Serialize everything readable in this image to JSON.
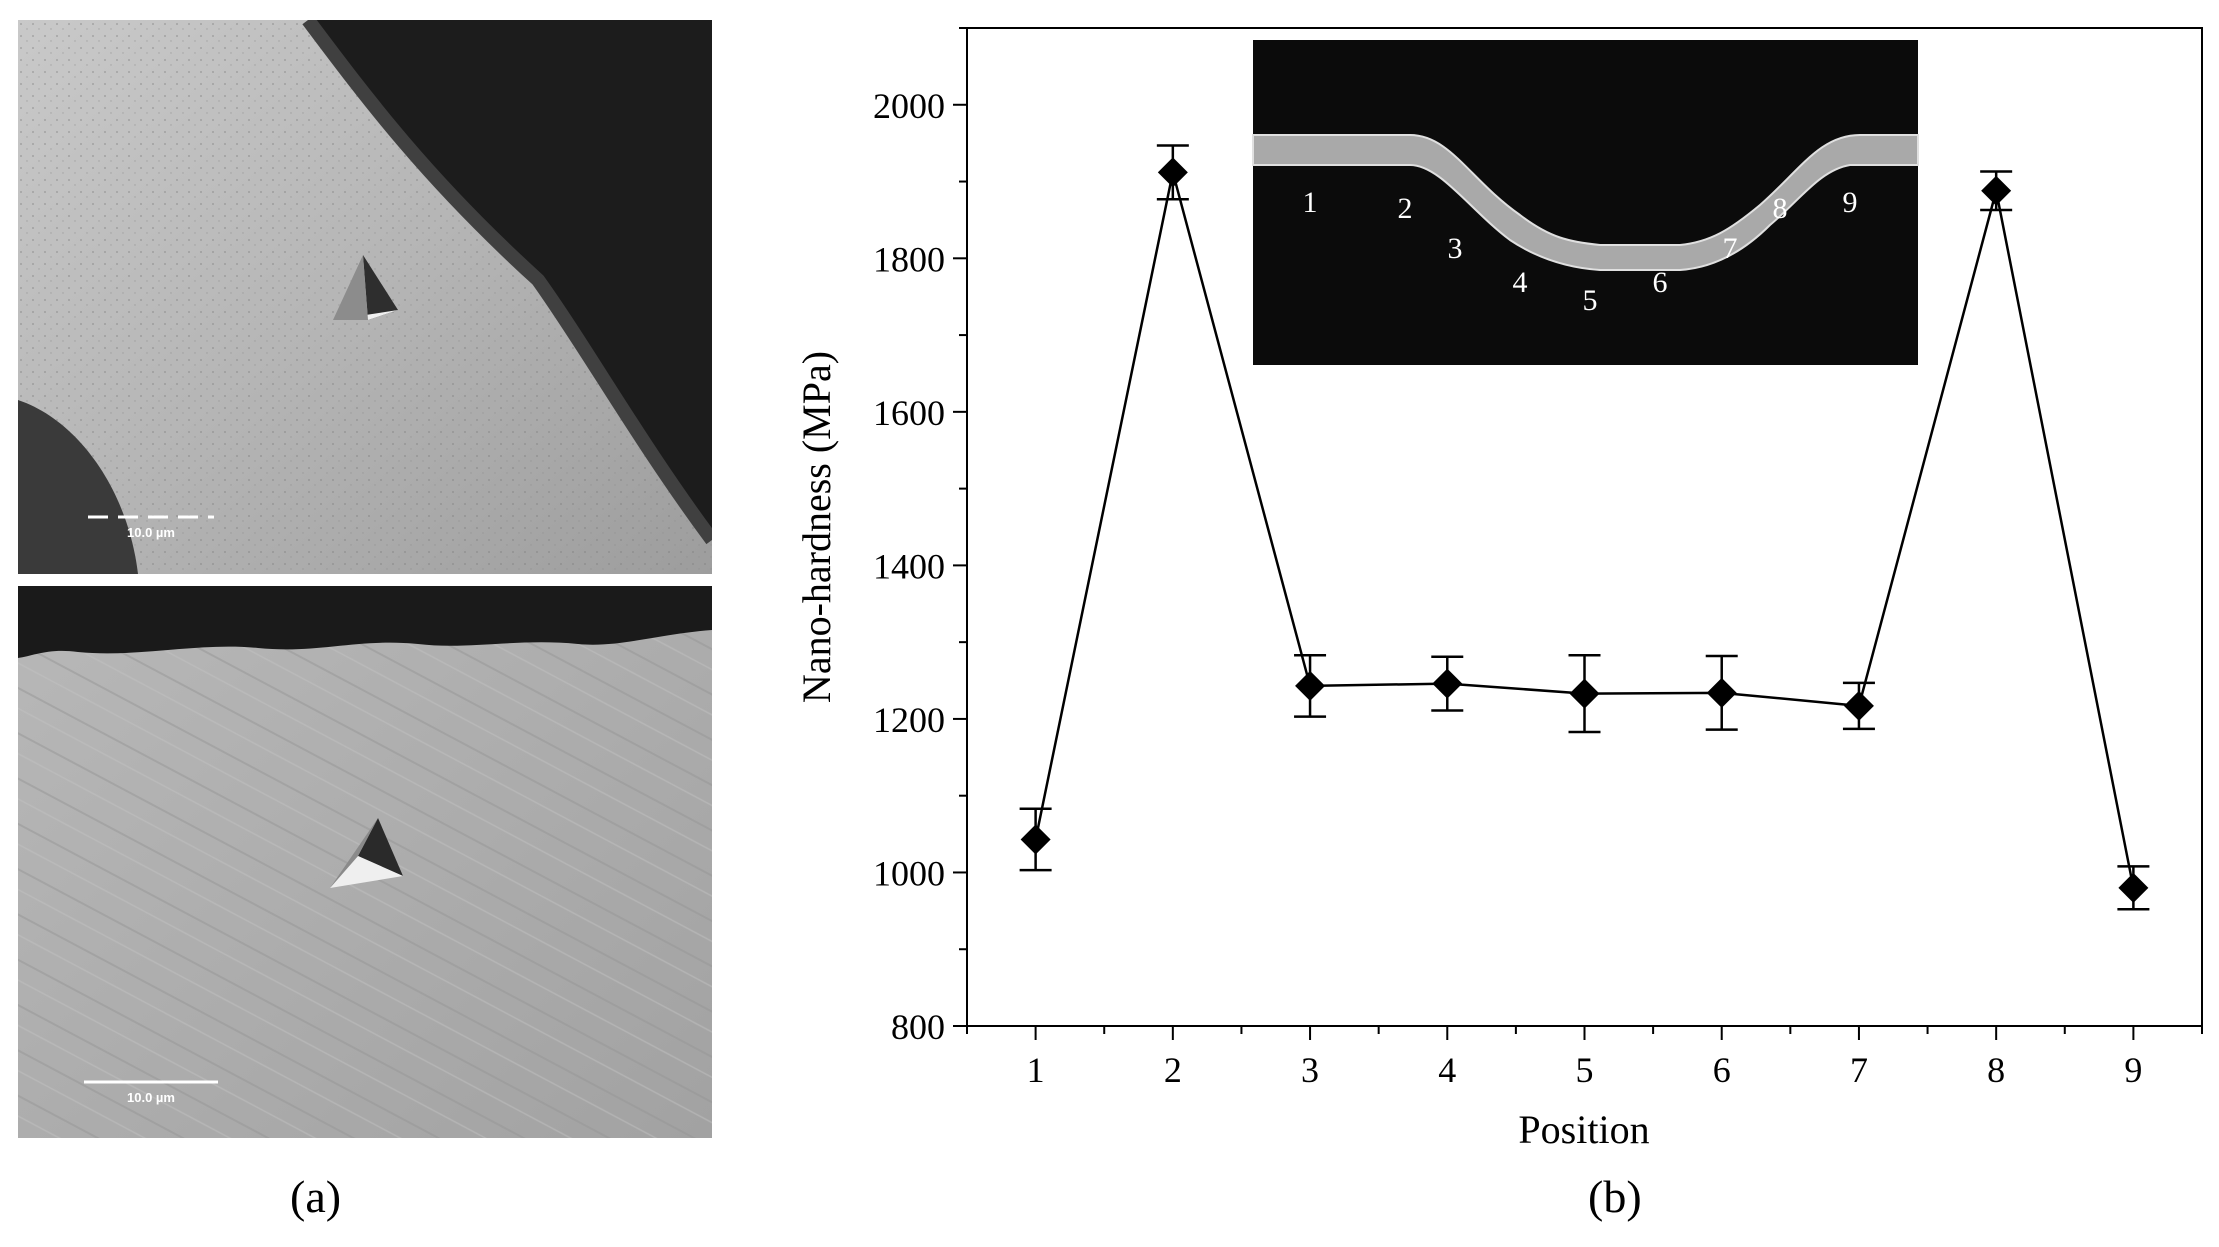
{
  "panels": {
    "a": {
      "label": "(a)",
      "scale_bar_top": "10.0 µm",
      "scale_bar_bottom": "10.0 µm"
    },
    "b": {
      "label": "(b)"
    }
  },
  "chart_data": {
    "type": "line",
    "x": [
      1,
      2,
      3,
      4,
      5,
      6,
      7,
      8,
      9
    ],
    "series": [
      {
        "values": [
          1043,
          1912,
          1243,
          1246,
          1233,
          1234,
          1217,
          1888,
          980
        ],
        "error": [
          40,
          35,
          40,
          35,
          50,
          48,
          30,
          25,
          28
        ]
      }
    ],
    "xlabel": "Position",
    "ylabel": "Nano-hardness (MPa)",
    "xticks": [
      1,
      2,
      3,
      4,
      5,
      6,
      7,
      8,
      9
    ],
    "yticks": [
      800,
      1000,
      1200,
      1400,
      1600,
      1800,
      2000
    ],
    "xlim": [
      0.5,
      9.5
    ],
    "ylim": [
      800,
      2100
    ],
    "marker": "diamond",
    "color": "#000000",
    "inset_labels": [
      "1",
      "2",
      "3",
      "4",
      "5",
      "6",
      "7",
      "8",
      "9"
    ]
  }
}
